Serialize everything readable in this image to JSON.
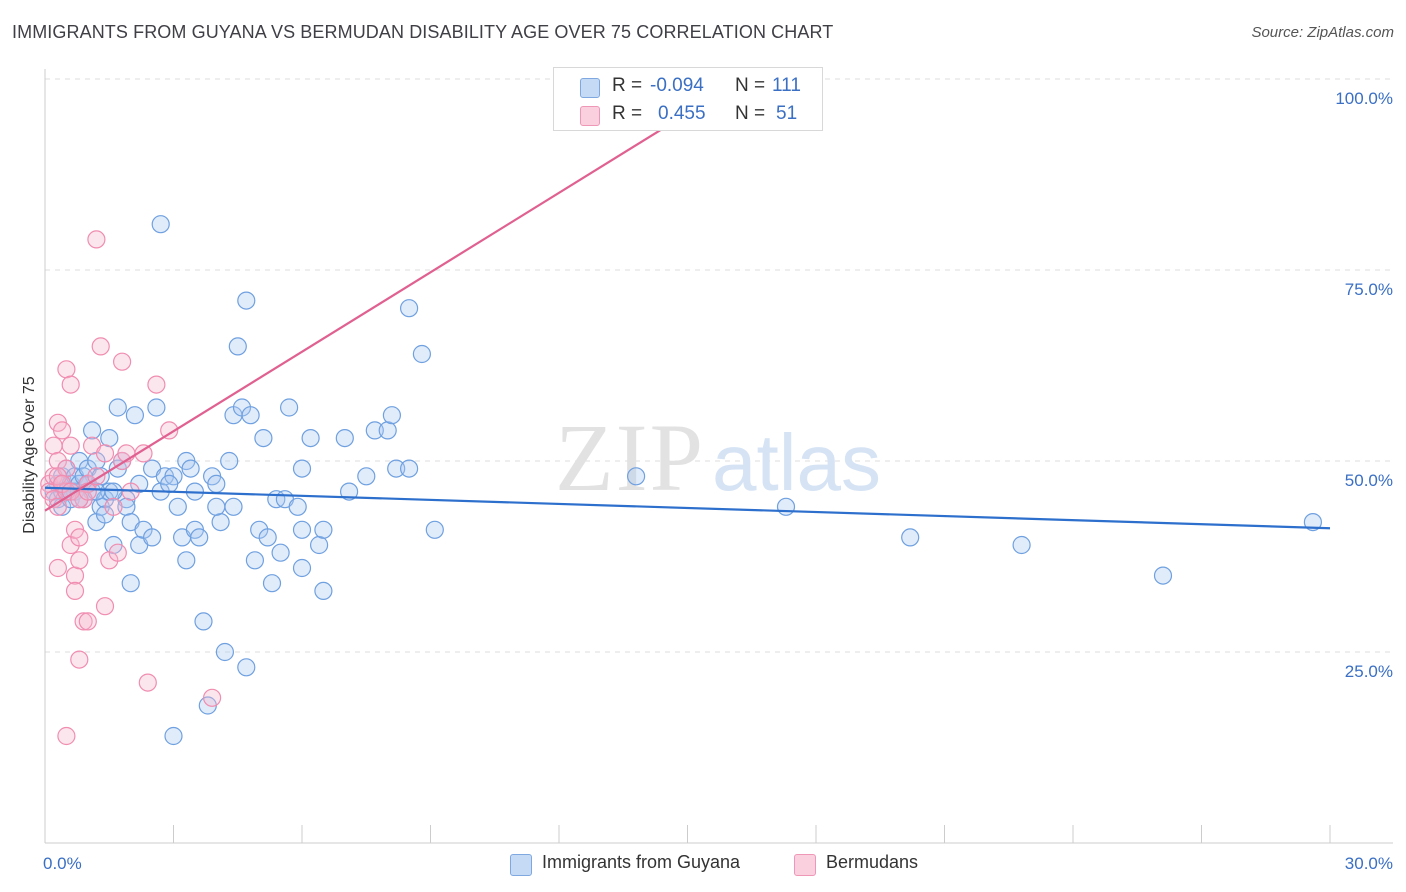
{
  "title": "IMMIGRANTS FROM GUYANA VS BERMUDAN DISABILITY AGE OVER 75 CORRELATION CHART",
  "source": "Source: ZipAtlas.com",
  "watermark": {
    "zip": "ZIP",
    "atlas": "atlas"
  },
  "legend": {
    "rows": [
      {
        "r_label": "R = ",
        "r_value": "-0.094",
        "n_label": "N = ",
        "n_value": "111",
        "color": "#a8c8f0"
      },
      {
        "r_label": "R = ",
        "r_value": "0.455",
        "n_label": "N = ",
        "n_value": "51",
        "color": "#f7b8cd"
      }
    ]
  },
  "bottom_legend": [
    {
      "label": "Immigrants from Guyana",
      "color": "#a8c8f0"
    },
    {
      "label": "Bermudans",
      "color": "#f7b8cd"
    }
  ],
  "chart_data": {
    "type": "scatter",
    "xlabel": "",
    "ylabel": "Disability Age Over 75",
    "xlim": [
      0,
      30
    ],
    "ylim": [
      0,
      100
    ],
    "x_tick_labels": [
      {
        "value": 0,
        "label": "0.0%"
      },
      {
        "value": 30,
        "label": "30.0%"
      }
    ],
    "y_tick_labels": [
      {
        "value": 25,
        "label": "25.0%"
      },
      {
        "value": 50,
        "label": "50.0%"
      },
      {
        "value": 75,
        "label": "75.0%"
      },
      {
        "value": 100,
        "label": "100.0%"
      }
    ],
    "grid": "horizontal dashed",
    "legend_position": "top-center",
    "series": [
      {
        "name": "Immigrants from Guyana",
        "color": "#6fa0e0",
        "trend": {
          "x0": 0,
          "y0": 46.5,
          "x1": 30,
          "y1": 41.2,
          "color": "#2d6fcc"
        },
        "points": [
          [
            0.2,
            46
          ],
          [
            0.3,
            45
          ],
          [
            0.3,
            47
          ],
          [
            0.4,
            48
          ],
          [
            0.4,
            44
          ],
          [
            0.5,
            46
          ],
          [
            0.5,
            49
          ],
          [
            0.6,
            47
          ],
          [
            0.6,
            45
          ],
          [
            0.7,
            48
          ],
          [
            0.7,
            46
          ],
          [
            0.8,
            47
          ],
          [
            0.8,
            50
          ],
          [
            0.9,
            45
          ],
          [
            0.9,
            48
          ],
          [
            1.0,
            47
          ],
          [
            1.0,
            49
          ],
          [
            1.1,
            46
          ],
          [
            1.1,
            54
          ],
          [
            1.2,
            50
          ],
          [
            1.2,
            42
          ],
          [
            1.3,
            44
          ],
          [
            1.3,
            48
          ],
          [
            1.4,
            45
          ],
          [
            1.4,
            43
          ],
          [
            1.5,
            46
          ],
          [
            1.5,
            53
          ],
          [
            1.6,
            39
          ],
          [
            1.7,
            57
          ],
          [
            1.7,
            49
          ],
          [
            1.8,
            50
          ],
          [
            1.9,
            45
          ],
          [
            1.9,
            44
          ],
          [
            2.0,
            42
          ],
          [
            2.0,
            34
          ],
          [
            2.1,
            56
          ],
          [
            2.2,
            39
          ],
          [
            2.3,
            41
          ],
          [
            2.5,
            40
          ],
          [
            2.5,
            49
          ],
          [
            2.6,
            57
          ],
          [
            2.7,
            46
          ],
          [
            2.7,
            81
          ],
          [
            2.8,
            48
          ],
          [
            3.0,
            48
          ],
          [
            3.1,
            44
          ],
          [
            3.2,
            40
          ],
          [
            3.3,
            37
          ],
          [
            3.3,
            50
          ],
          [
            3.4,
            49
          ],
          [
            3.5,
            41
          ],
          [
            3.6,
            40
          ],
          [
            3.7,
            29
          ],
          [
            3.8,
            18
          ],
          [
            3.9,
            48
          ],
          [
            4.0,
            47
          ],
          [
            4.1,
            42
          ],
          [
            4.2,
            25
          ],
          [
            4.3,
            50
          ],
          [
            4.4,
            44
          ],
          [
            4.4,
            56
          ],
          [
            4.5,
            65
          ],
          [
            4.6,
            57
          ],
          [
            4.7,
            71
          ],
          [
            4.8,
            56
          ],
          [
            4.9,
            37
          ],
          [
            5.0,
            41
          ],
          [
            5.1,
            53
          ],
          [
            5.2,
            40
          ],
          [
            5.3,
            34
          ],
          [
            5.4,
            45
          ],
          [
            5.5,
            38
          ],
          [
            5.6,
            45
          ],
          [
            5.7,
            57
          ],
          [
            5.9,
            44
          ],
          [
            6.0,
            49
          ],
          [
            6.0,
            36
          ],
          [
            6.2,
            53
          ],
          [
            6.4,
            39
          ],
          [
            6.5,
            41
          ],
          [
            6.5,
            33
          ],
          [
            7.0,
            53
          ],
          [
            7.1,
            46
          ],
          [
            7.5,
            48
          ],
          [
            7.7,
            54
          ],
          [
            8.0,
            54
          ],
          [
            8.1,
            56
          ],
          [
            8.2,
            49
          ],
          [
            8.5,
            70
          ],
          [
            8.5,
            49
          ],
          [
            8.8,
            64
          ],
          [
            9.1,
            41
          ],
          [
            13.8,
            48
          ],
          [
            17.3,
            44
          ],
          [
            20.2,
            40
          ],
          [
            22.8,
            39
          ],
          [
            26.1,
            35
          ],
          [
            29.6,
            42
          ],
          [
            3.0,
            14
          ],
          [
            4.7,
            23
          ],
          [
            0.4,
            46
          ],
          [
            0.6,
            46
          ],
          [
            0.8,
            45
          ],
          [
            1.0,
            47
          ],
          [
            1.2,
            46
          ],
          [
            1.6,
            46
          ],
          [
            2.2,
            47
          ],
          [
            2.9,
            47
          ],
          [
            3.5,
            46
          ],
          [
            4.0,
            44
          ],
          [
            6.0,
            41
          ]
        ]
      },
      {
        "name": "Bermudans",
        "color": "#f08db0",
        "trend": {
          "x0": 0,
          "y0": 43.5,
          "x1": 15,
          "y1": 95.5,
          "color": "#e06090"
        },
        "points": [
          [
            0.1,
            47
          ],
          [
            0.1,
            46
          ],
          [
            0.2,
            45
          ],
          [
            0.2,
            48
          ],
          [
            0.2,
            52
          ],
          [
            0.3,
            44
          ],
          [
            0.3,
            50
          ],
          [
            0.3,
            55
          ],
          [
            0.3,
            36
          ],
          [
            0.4,
            47
          ],
          [
            0.4,
            54
          ],
          [
            0.5,
            46
          ],
          [
            0.5,
            49
          ],
          [
            0.5,
            62
          ],
          [
            0.6,
            60
          ],
          [
            0.6,
            52
          ],
          [
            0.6,
            39
          ],
          [
            0.7,
            41
          ],
          [
            0.7,
            35
          ],
          [
            0.7,
            33
          ],
          [
            0.8,
            37
          ],
          [
            0.8,
            40
          ],
          [
            0.8,
            24
          ],
          [
            0.9,
            45
          ],
          [
            0.9,
            29
          ],
          [
            1.0,
            29
          ],
          [
            1.0,
            47
          ],
          [
            1.1,
            52
          ],
          [
            1.2,
            48
          ],
          [
            1.2,
            79
          ],
          [
            1.3,
            65
          ],
          [
            1.4,
            31
          ],
          [
            1.4,
            51
          ],
          [
            1.5,
            37
          ],
          [
            1.6,
            44
          ],
          [
            1.7,
            38
          ],
          [
            1.8,
            50
          ],
          [
            1.8,
            63
          ],
          [
            1.9,
            51
          ],
          [
            2.0,
            46
          ],
          [
            2.3,
            51
          ],
          [
            2.4,
            21
          ],
          [
            2.6,
            60
          ],
          [
            2.9,
            54
          ],
          [
            3.9,
            19
          ],
          [
            0.5,
            14
          ],
          [
            0.3,
            48
          ],
          [
            0.4,
            47
          ],
          [
            0.6,
            46
          ],
          [
            0.8,
            45
          ],
          [
            1.0,
            46
          ]
        ]
      }
    ]
  }
}
